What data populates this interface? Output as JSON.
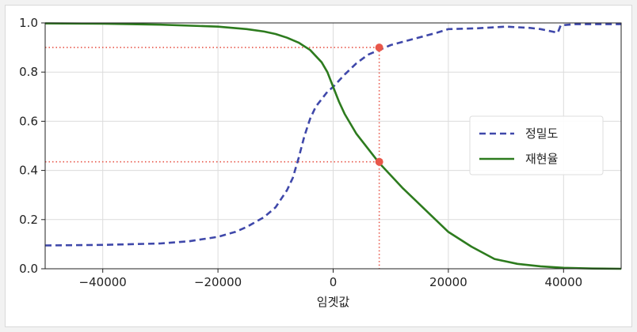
{
  "chart_data": {
    "type": "line",
    "title": "",
    "xlabel": "임곗값",
    "ylabel": "",
    "xlim": [
      -50000,
      50000
    ],
    "ylim": [
      0.0,
      1.0
    ],
    "grid": true,
    "legend_position": "center-right",
    "x_ticks": [
      -40000,
      -20000,
      0,
      20000,
      40000
    ],
    "x_tick_labels": [
      "−40000",
      "−20000",
      "0",
      "20000",
      "40000"
    ],
    "y_ticks": [
      0.0,
      0.2,
      0.4,
      0.6,
      0.8,
      1.0
    ],
    "y_tick_labels": [
      "0.0",
      "0.2",
      "0.4",
      "0.6",
      "0.8",
      "1.0"
    ],
    "series": [
      {
        "name": "정밀도",
        "style": "dashed",
        "color": "#3f48aa",
        "points": [
          [
            -50000,
            0.095
          ],
          [
            -40000,
            0.097
          ],
          [
            -30000,
            0.103
          ],
          [
            -25000,
            0.112
          ],
          [
            -20000,
            0.13
          ],
          [
            -17000,
            0.15
          ],
          [
            -15000,
            0.17
          ],
          [
            -12000,
            0.21
          ],
          [
            -10000,
            0.25
          ],
          [
            -8000,
            0.32
          ],
          [
            -7000,
            0.37
          ],
          [
            -6000,
            0.45
          ],
          [
            -5000,
            0.54
          ],
          [
            -4000,
            0.61
          ],
          [
            -3000,
            0.66
          ],
          [
            -2000,
            0.69
          ],
          [
            -1000,
            0.72
          ],
          [
            0,
            0.74
          ],
          [
            2000,
            0.79
          ],
          [
            4000,
            0.835
          ],
          [
            6000,
            0.87
          ],
          [
            8000,
            0.89
          ],
          [
            10000,
            0.91
          ],
          [
            14000,
            0.935
          ],
          [
            18000,
            0.96
          ],
          [
            20000,
            0.975
          ],
          [
            25000,
            0.978
          ],
          [
            30000,
            0.985
          ],
          [
            34000,
            0.98
          ],
          [
            36000,
            0.975
          ],
          [
            38000,
            0.965
          ],
          [
            39000,
            0.96
          ],
          [
            39500,
            0.99
          ],
          [
            42000,
            0.995
          ],
          [
            50000,
            0.995
          ]
        ]
      },
      {
        "name": "재현율",
        "style": "solid",
        "color": "#2d7b1e",
        "points": [
          [
            -50000,
            0.998
          ],
          [
            -40000,
            0.997
          ],
          [
            -30000,
            0.993
          ],
          [
            -20000,
            0.985
          ],
          [
            -15000,
            0.975
          ],
          [
            -12000,
            0.965
          ],
          [
            -10000,
            0.955
          ],
          [
            -8000,
            0.94
          ],
          [
            -6000,
            0.92
          ],
          [
            -4000,
            0.89
          ],
          [
            -2000,
            0.84
          ],
          [
            -1000,
            0.8
          ],
          [
            0,
            0.74
          ],
          [
            1000,
            0.68
          ],
          [
            2000,
            0.63
          ],
          [
            4000,
            0.55
          ],
          [
            6000,
            0.49
          ],
          [
            8000,
            0.43
          ],
          [
            12000,
            0.33
          ],
          [
            16000,
            0.24
          ],
          [
            20000,
            0.15
          ],
          [
            24000,
            0.09
          ],
          [
            28000,
            0.04
          ],
          [
            32000,
            0.02
          ],
          [
            36000,
            0.01
          ],
          [
            40000,
            0.004
          ],
          [
            45000,
            0.001
          ],
          [
            50000,
            0.0
          ]
        ]
      }
    ],
    "highlight": {
      "threshold": 8000,
      "precision": 0.9,
      "recall": 0.435,
      "color": "#e8574a"
    }
  }
}
